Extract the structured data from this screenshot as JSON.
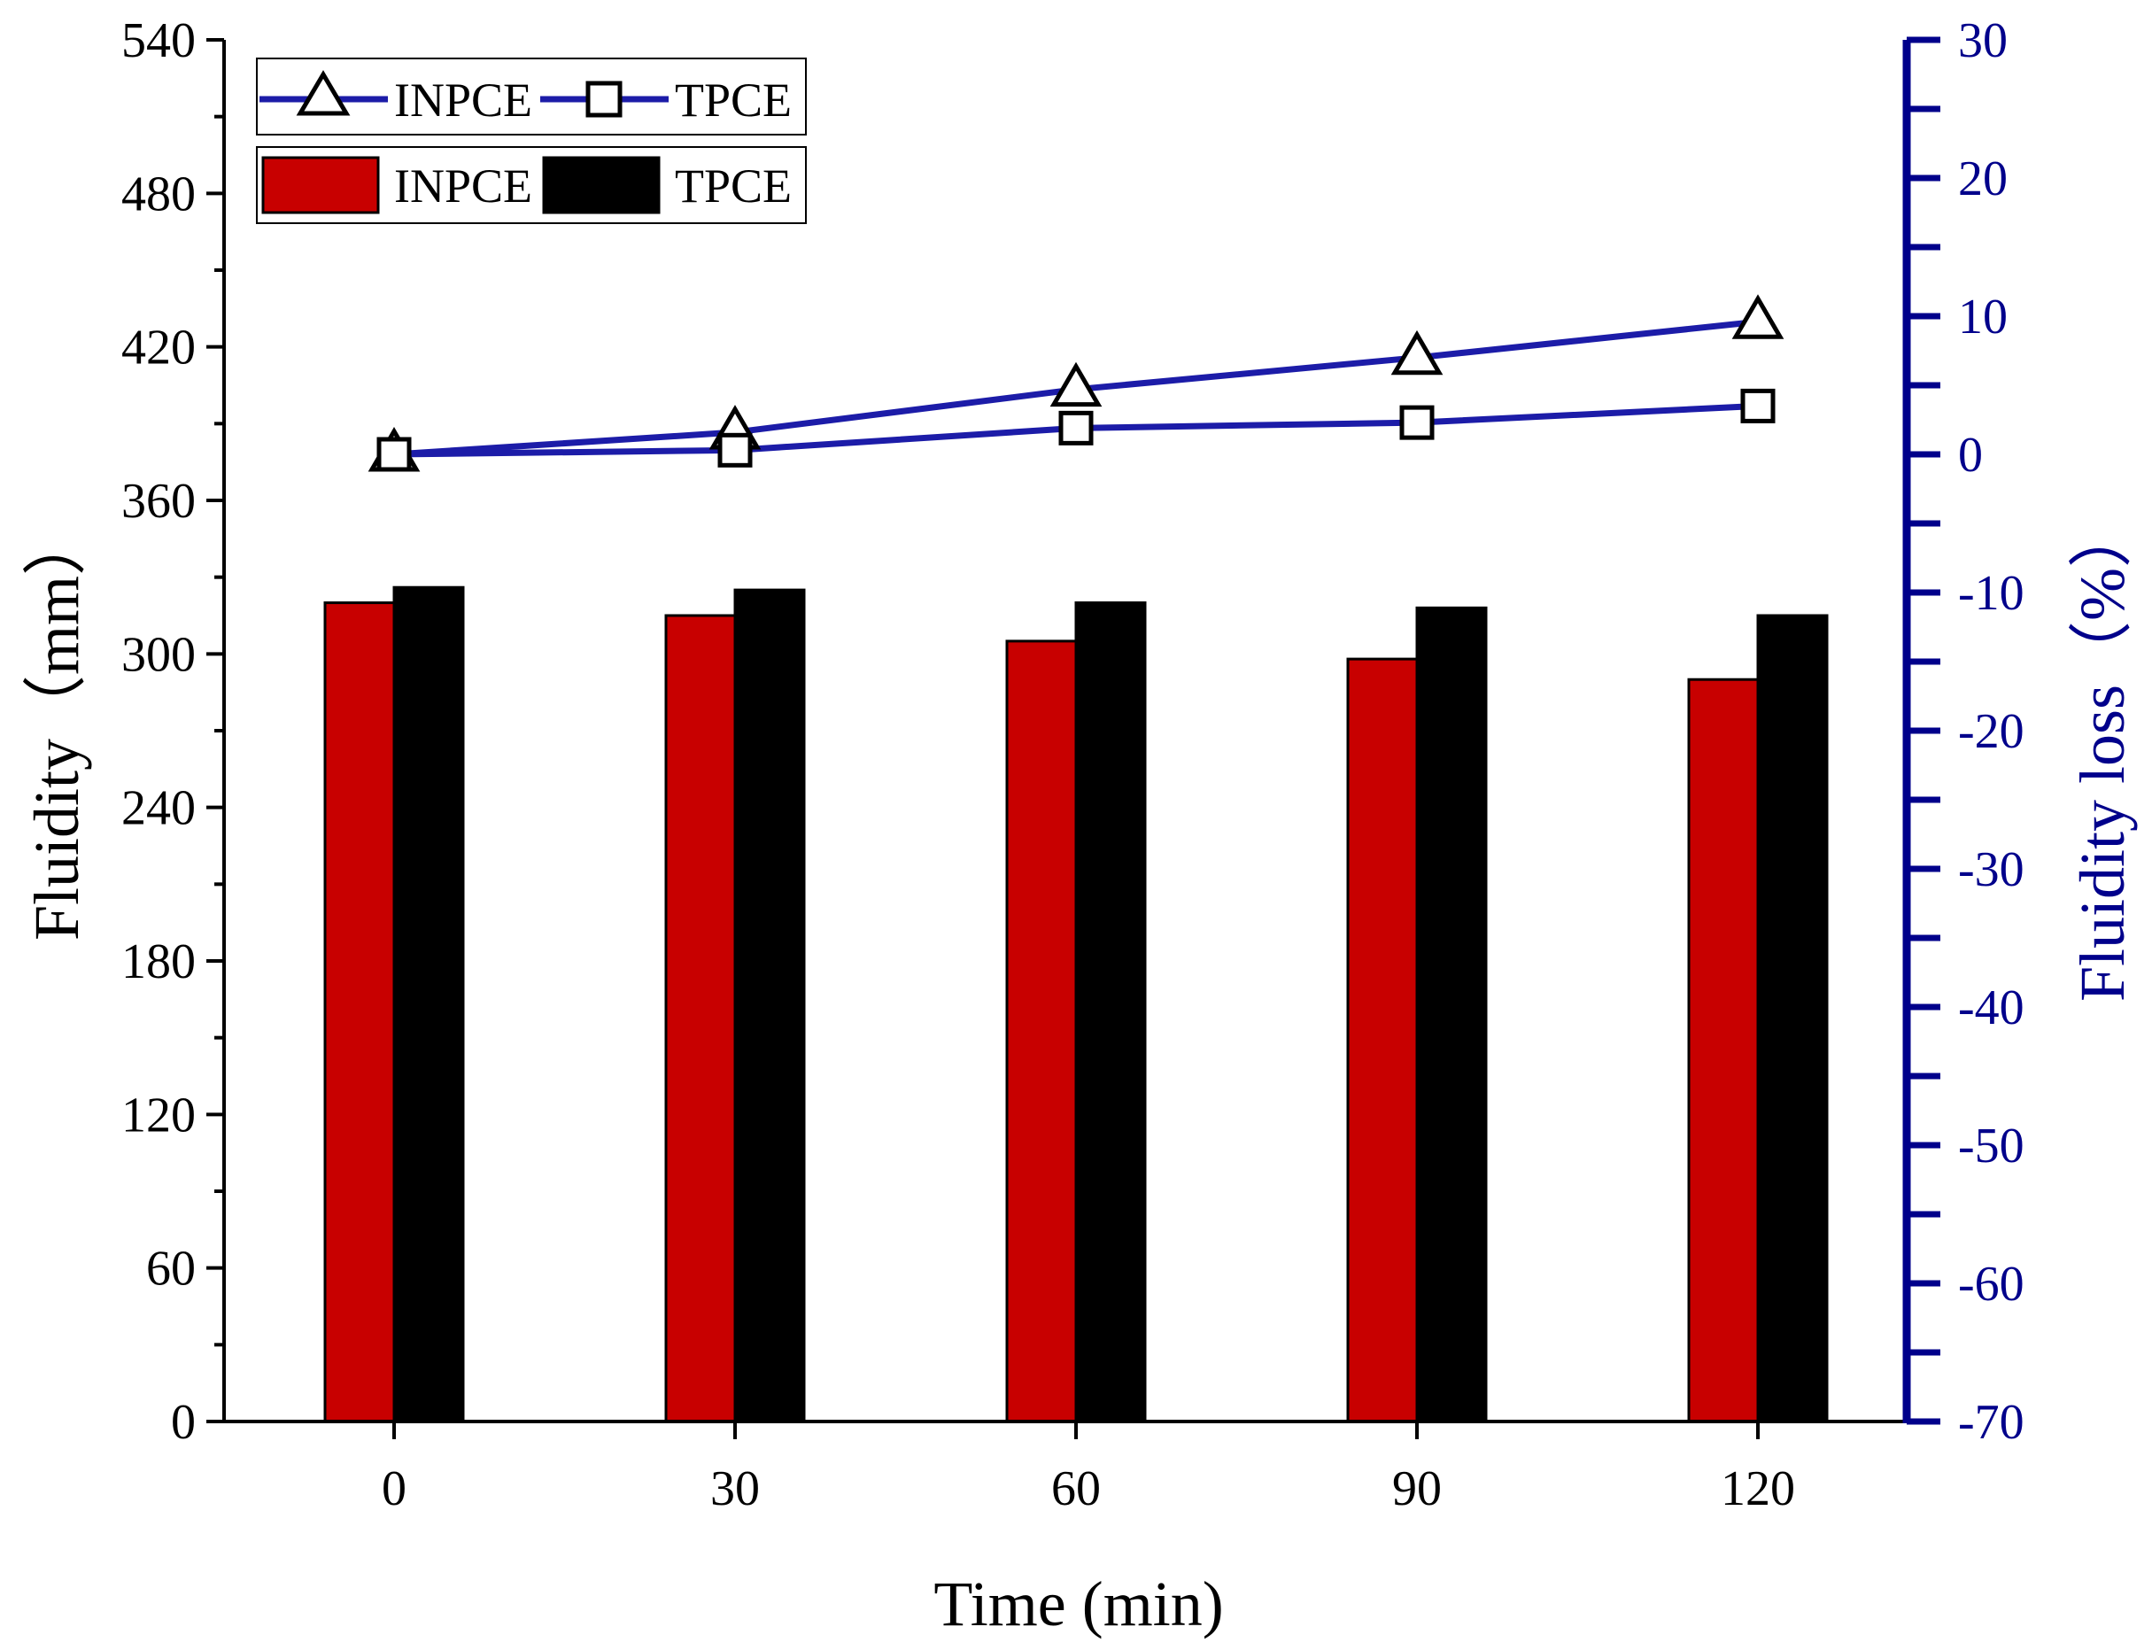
{
  "colors": {
    "inpce_bar": "#c80000",
    "tpce_bar": "#000000",
    "line": "#1c1ca8",
    "right_axis": "#00008b",
    "axis": "#000000",
    "marker_fill": "#ffffff"
  },
  "chart_data": {
    "type": "bar",
    "categories": [
      "0",
      "30",
      "60",
      "90",
      "120"
    ],
    "xlabel": "Time (min)",
    "ylabel": "Fluidity（mm）",
    "ylabel_right": "Fluidity loss（%）",
    "ylim": [
      0,
      540
    ],
    "ylim_right": [
      -70,
      30
    ],
    "yticks": [
      "0",
      "60",
      "120",
      "180",
      "240",
      "300",
      "360",
      "420",
      "480",
      "540"
    ],
    "yticks_right": [
      "-70",
      "-60",
      "-50",
      "-40",
      "-30",
      "-20",
      "-10",
      "0",
      "10",
      "20",
      "30"
    ],
    "bar_series": [
      {
        "name": "INPCE",
        "values": [
          320,
          315,
          305,
          298,
          290
        ]
      },
      {
        "name": "TPCE",
        "values": [
          326,
          325,
          320,
          318,
          315
        ]
      }
    ],
    "line_series": [
      {
        "name": "INPCE",
        "marker": "triangle-icon",
        "axis": "right",
        "values": [
          0,
          1.6,
          4.7,
          7.0,
          9.6
        ]
      },
      {
        "name": "TPCE",
        "marker": "square-icon",
        "axis": "right",
        "values": [
          0,
          0.3,
          1.9,
          2.3,
          3.5
        ]
      }
    ],
    "legend_position": "top-left",
    "grid": false
  }
}
